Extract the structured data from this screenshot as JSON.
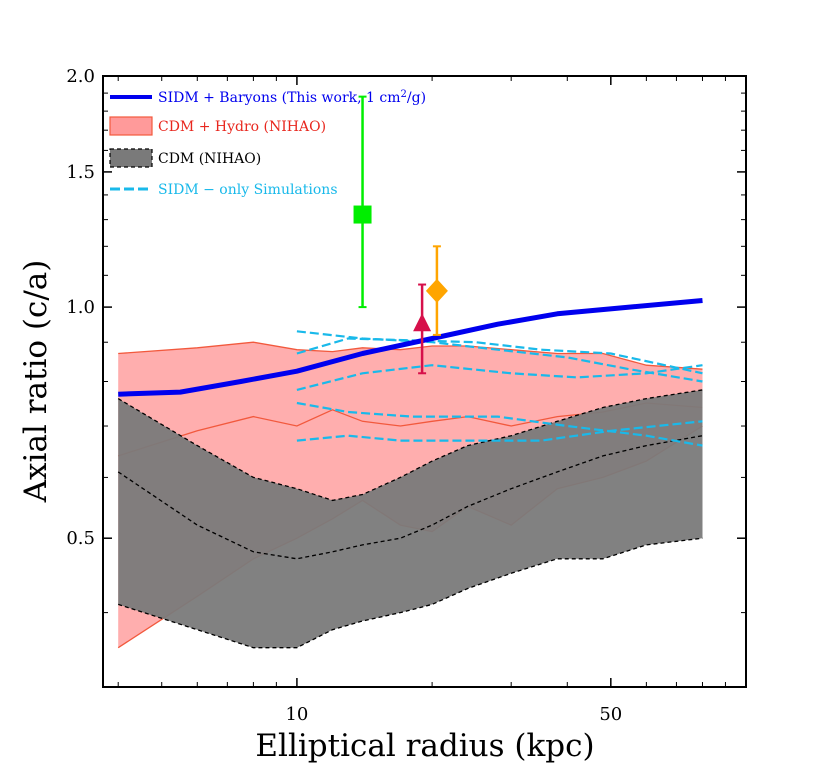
{
  "chart_data": {
    "type": "line",
    "xlabel": "Elliptical radius (kpc)",
    "ylabel": "Axial ratio (c/a)",
    "xscale": "log",
    "yscale": "log",
    "xlim": [
      3.7,
      100
    ],
    "ylim": [
      0.32,
      2.0
    ],
    "x_ticks": [
      10,
      50
    ],
    "y_ticks": [
      0.5,
      1.0,
      1.5,
      2.0
    ],
    "y_tick_labels": [
      "0.5",
      "1.0",
      "1.5",
      "2.0"
    ],
    "legend_position": "top-left",
    "legend": [
      {
        "label": "SIDM + Baryons (This work, 1 cm²/g)",
        "label_base": "SIDM + Baryons (This work, 1 cm",
        "label_sup": "2",
        "label_tail": "/g)",
        "color": "#0000ee",
        "style": "thick-line"
      },
      {
        "label": "CDM + Hydro (NIHAO)",
        "color": "#e8271e",
        "style": "patch-red"
      },
      {
        "label": "CDM (NIHAO)",
        "color": "#000000",
        "style": "patch-gray"
      },
      {
        "label": "SIDM − only Simulations",
        "color": "#19b9ea",
        "style": "dashed-line"
      }
    ],
    "series": [
      {
        "name": "SIDM + Baryons (This work, 1 cm²/g)",
        "color": "#0000ee",
        "x": [
          4.0,
          5.5,
          7.5,
          10,
          14,
          20,
          28,
          38,
          55,
          80
        ],
        "y": [
          0.77,
          0.775,
          0.8,
          0.825,
          0.87,
          0.91,
          0.95,
          0.98,
          1.0,
          1.02
        ]
      }
    ],
    "bands": [
      {
        "name": "CDM + Hydro (NIHAO)",
        "fill": "#ff9a9a",
        "edge": "#f2593d",
        "x": [
          4,
          6,
          8,
          10,
          12,
          14,
          17,
          20,
          24,
          30,
          38,
          48,
          60,
          80
        ],
        "upper": [
          0.87,
          0.885,
          0.9,
          0.88,
          0.875,
          0.885,
          0.88,
          0.89,
          0.89,
          0.88,
          0.87,
          0.87,
          0.84,
          0.83
        ],
        "lower": [
          0.36,
          0.42,
          0.47,
          0.5,
          0.53,
          0.56,
          0.52,
          0.51,
          0.55,
          0.52,
          0.58,
          0.6,
          0.63,
          0.7
        ],
        "median": [
          0.64,
          0.69,
          0.72,
          0.7,
          0.735,
          0.71,
          0.7,
          0.71,
          0.72,
          0.7,
          0.72,
          0.73,
          0.75,
          0.74
        ]
      },
      {
        "name": "CDM (NIHAO)",
        "fill": "#7a7a7a",
        "fill_opacity": 0.95,
        "edge": "#000000",
        "x": [
          4,
          6,
          8,
          10,
          12,
          14,
          17,
          20,
          24,
          30,
          38,
          48,
          60,
          80
        ],
        "upper": [
          0.76,
          0.66,
          0.6,
          0.58,
          0.56,
          0.57,
          0.6,
          0.63,
          0.66,
          0.68,
          0.71,
          0.74,
          0.76,
          0.78
        ],
        "lower": [
          0.41,
          0.38,
          0.36,
          0.36,
          0.38,
          0.39,
          0.4,
          0.41,
          0.43,
          0.45,
          0.47,
          0.47,
          0.49,
          0.5
        ],
        "median": [
          0.61,
          0.52,
          0.48,
          0.47,
          0.48,
          0.49,
          0.5,
          0.52,
          0.55,
          0.58,
          0.61,
          0.64,
          0.66,
          0.68
        ]
      }
    ],
    "sidm_only_curves": [
      {
        "x": [
          10,
          14,
          20,
          28,
          40,
          55,
          80
        ],
        "y": [
          0.93,
          0.91,
          0.9,
          0.88,
          0.86,
          0.83,
          0.8
        ]
      },
      {
        "x": [
          10,
          13,
          18,
          25,
          35,
          50,
          80
        ],
        "y": [
          0.87,
          0.91,
          0.905,
          0.9,
          0.88,
          0.87,
          0.82
        ]
      },
      {
        "x": [
          10,
          14,
          20,
          30,
          42,
          60,
          80
        ],
        "y": [
          0.78,
          0.82,
          0.84,
          0.82,
          0.81,
          0.82,
          0.84
        ]
      },
      {
        "x": [
          10,
          13,
          18,
          28,
          40,
          60,
          80
        ],
        "y": [
          0.75,
          0.73,
          0.72,
          0.72,
          0.7,
          0.68,
          0.66
        ]
      },
      {
        "x": [
          10,
          13,
          17,
          24,
          35,
          50,
          80
        ],
        "y": [
          0.67,
          0.68,
          0.67,
          0.67,
          0.67,
          0.69,
          0.71
        ]
      }
    ],
    "observations": [
      {
        "marker": "square",
        "color": "#00ee00",
        "x": 14,
        "y": 1.32,
        "yerr_low": 1.0,
        "yerr_high": 1.88
      },
      {
        "marker": "triangle",
        "color": "#d6104a",
        "x": 19,
        "y": 0.95,
        "yerr_low": 0.82,
        "yerr_high": 1.07
      },
      {
        "marker": "diamond",
        "color": "#ffa500",
        "x": 20.5,
        "y": 1.05,
        "yerr_low": 0.92,
        "yerr_high": 1.2
      }
    ]
  }
}
